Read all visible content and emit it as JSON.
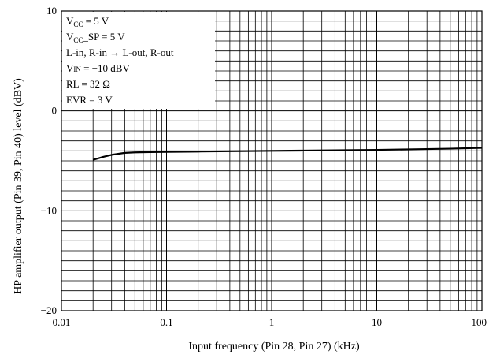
{
  "chart_data": {
    "type": "line",
    "title": "",
    "xlabel": "Input frequency (Pin 28, Pin 27)  (kHz)",
    "ylabel": "HP amplifier output (Pin 39, Pin 40) level  (dBV)",
    "xscale": "log",
    "xlim": [
      0.01,
      100
    ],
    "ylim": [
      -20,
      10
    ],
    "grid": true,
    "x_ticks": [
      "0.01",
      "0.1",
      "1",
      "10",
      "100"
    ],
    "x_tick_values": [
      0.01,
      0.1,
      1,
      10,
      100
    ],
    "y_ticks": [
      "10",
      "0",
      "−10",
      "−20"
    ],
    "y_tick_values": [
      10,
      0,
      -10,
      -20
    ],
    "y_minor_step": 1,
    "series": [
      {
        "name": "",
        "color": "#000000",
        "x": [
          0.02,
          0.025,
          0.03,
          0.04,
          0.05,
          0.07,
          0.1,
          0.2,
          0.5,
          1,
          2,
          5,
          10,
          20,
          50,
          100
        ],
        "y": [
          -4.9,
          -4.6,
          -4.4,
          -4.2,
          -4.15,
          -4.12,
          -4.1,
          -4.07,
          -4.03,
          -4.0,
          -3.97,
          -3.93,
          -3.9,
          -3.85,
          -3.78,
          -3.7
        ]
      }
    ],
    "conditions": {
      "vcc": {
        "base": "V",
        "sub": "CC",
        "rest": " = 5 V"
      },
      "vcc_sp": {
        "base": "V",
        "sub": "CC",
        "rest": "_SP = 5 V"
      },
      "route": "L-in, R-in → L-out, R-out",
      "vin": {
        "base": "V",
        "sub": "IN",
        "rest": " = −10 dBV"
      },
      "rl": "RL = 32 Ω",
      "evr": "EVR = 3 V"
    },
    "legend_position": "top-left"
  }
}
